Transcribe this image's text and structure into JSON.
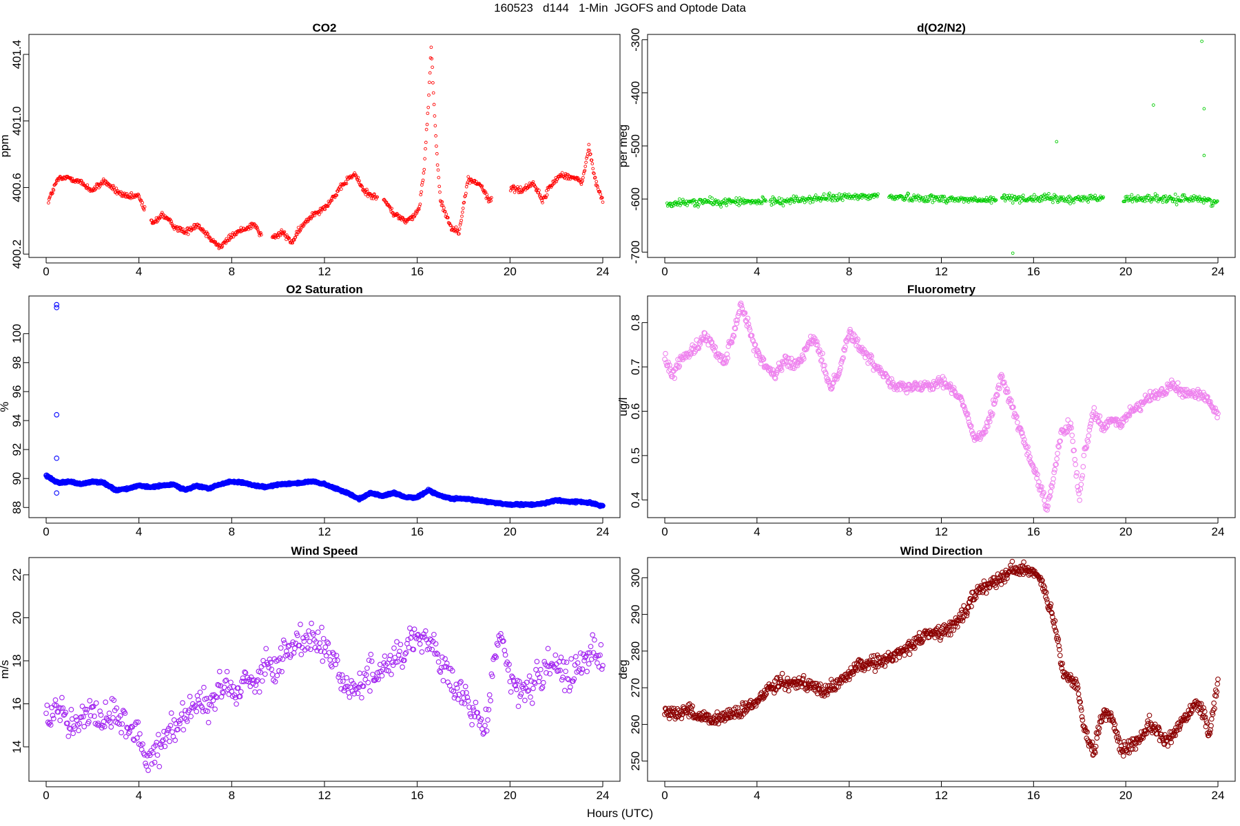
{
  "figure_title": "160523   d144   1-Min  JGOFS and Optode Data",
  "x_caption": "Hours (UTC)",
  "chart_data": [
    {
      "type": "scatter",
      "title": "CO2",
      "ylabel": "ppm",
      "color": "#ff0000",
      "marker_size": "small",
      "xlim": [
        0,
        24
      ],
      "ylim": [
        400.18,
        401.52
      ],
      "xticks": [
        0,
        4,
        8,
        12,
        16,
        20,
        24
      ],
      "yticks": [
        400.2,
        400.6,
        401.0,
        401.4
      ],
      "ytick_labels": [
        "400.2",
        "400.6",
        "401.0",
        "401.4"
      ],
      "series": [
        {
          "name": "CO2",
          "x": [
            0.1,
            0.5,
            1.0,
            1.5,
            2.0,
            2.5,
            3.0,
            3.5,
            4.0,
            4.2,
            4.6,
            5.0,
            5.5,
            6.0,
            6.5,
            7.0,
            7.5,
            8.0,
            8.5,
            9.0,
            9.2,
            9.8,
            10.2,
            10.6,
            11.0,
            11.5,
            12.0,
            12.5,
            13.0,
            13.3,
            13.7,
            14.1,
            14.6,
            15.0,
            15.5,
            15.9,
            16.1,
            16.3,
            16.5,
            16.6,
            16.8,
            17.0,
            17.5,
            17.8,
            18.2,
            18.7,
            19.1,
            20.1,
            20.5,
            21.0,
            21.4,
            21.7,
            22.2,
            22.7,
            23.1,
            23.4,
            23.7,
            24.0
          ],
          "y": [
            400.52,
            400.65,
            400.66,
            400.63,
            400.58,
            400.64,
            400.58,
            400.54,
            400.55,
            400.48,
            400.38,
            400.44,
            400.37,
            400.33,
            400.38,
            400.31,
            400.24,
            400.31,
            400.35,
            400.38,
            400.32,
            400.3,
            400.33,
            400.27,
            400.36,
            400.44,
            400.48,
            400.56,
            400.65,
            400.68,
            400.58,
            400.55,
            400.52,
            400.44,
            400.4,
            400.43,
            400.48,
            400.72,
            401.15,
            401.45,
            400.9,
            400.52,
            400.35,
            400.34,
            400.65,
            400.62,
            400.52,
            400.6,
            400.58,
            400.63,
            400.52,
            400.6,
            400.68,
            400.66,
            400.63,
            400.84,
            400.63,
            400.52
          ]
        }
      ]
    },
    {
      "type": "scatter",
      "title": "d(O2/N2)",
      "ylabel": "per meg",
      "color": "#00cc00",
      "marker_size": "small",
      "xlim": [
        0,
        24
      ],
      "ylim": [
        -710,
        -290
      ],
      "xticks": [
        0,
        4,
        8,
        12,
        16,
        20,
        24
      ],
      "yticks": [
        -700,
        -600,
        -500,
        -400,
        -300
      ],
      "ytick_labels": [
        "-700",
        "-600",
        "-500",
        "-400",
        "-300"
      ],
      "series": [
        {
          "name": "d(O2/N2)",
          "x": [
            0.1,
            0.6,
            1.2,
            1.8,
            2.4,
            3.0,
            3.6,
            4.2,
            4.7,
            5.2,
            5.8,
            6.4,
            7.0,
            7.6,
            8.2,
            8.8,
            9.2,
            9.9,
            10.5,
            11.1,
            11.7,
            12.3,
            12.9,
            13.5,
            14.1,
            14.7,
            15.3,
            15.9,
            16.5,
            17.1,
            17.7,
            18.3,
            18.9,
            20.0,
            20.6,
            21.2,
            21.8,
            22.4,
            23.0,
            23.6,
            24.0
          ],
          "y": [
            -610,
            -608,
            -606,
            -605,
            -607,
            -604,
            -606,
            -605,
            -603,
            -604,
            -601,
            -600,
            -598,
            -597,
            -596,
            -595,
            -594,
            -596,
            -597,
            -598,
            -599,
            -600,
            -601,
            -602,
            -603,
            -598,
            -598,
            -600,
            -598,
            -600,
            -602,
            -597,
            -599,
            -600,
            -599,
            -598,
            -602,
            -600,
            -598,
            -604,
            -605
          ]
        }
      ],
      "outliers": {
        "x": [
          15.1,
          17.0,
          21.2,
          23.3,
          23.4,
          23.4
        ],
        "y": [
          -702,
          -492,
          -423,
          -303,
          -430,
          -518
        ]
      }
    },
    {
      "type": "scatter",
      "title": "O2 Saturation",
      "ylabel": "%",
      "color": "#0000ff",
      "marker_size": "large",
      "xlim": [
        0,
        24
      ],
      "ylim": [
        87.3,
        102.6
      ],
      "xticks": [
        0,
        4,
        8,
        12,
        16,
        20,
        24
      ],
      "yticks": [
        88,
        90,
        92,
        94,
        96,
        98,
        100
      ],
      "ytick_labels": [
        "88",
        "90",
        "92",
        "94",
        "96",
        "98",
        "100"
      ],
      "series": [
        {
          "name": "O2 Saturation",
          "x": [
            0.0,
            0.3,
            0.6,
            1.0,
            1.5,
            2.0,
            2.5,
            3.0,
            3.5,
            4.0,
            4.5,
            5.0,
            5.5,
            6.0,
            6.5,
            7.0,
            7.5,
            8.0,
            8.5,
            9.0,
            9.5,
            10.0,
            11.0,
            11.5,
            12.0,
            12.5,
            13.0,
            13.5,
            14.0,
            14.5,
            15.0,
            15.5,
            16.0,
            16.5,
            17.0,
            17.5,
            18.0,
            18.5,
            19.0,
            19.5,
            20.0,
            20.5,
            21.0,
            21.5,
            22.0,
            22.5,
            23.0,
            23.5,
            24.0
          ],
          "y": [
            90.2,
            89.9,
            89.7,
            89.8,
            89.6,
            89.8,
            89.7,
            89.2,
            89.3,
            89.5,
            89.4,
            89.5,
            89.6,
            89.2,
            89.5,
            89.3,
            89.6,
            89.8,
            89.7,
            89.5,
            89.4,
            89.6,
            89.7,
            89.8,
            89.6,
            89.3,
            89.0,
            88.6,
            89.0,
            88.8,
            89.0,
            88.7,
            88.7,
            89.2,
            88.8,
            88.6,
            88.6,
            88.5,
            88.4,
            88.3,
            88.2,
            88.2,
            88.2,
            88.3,
            88.5,
            88.4,
            88.4,
            88.3,
            88.1
          ]
        }
      ],
      "outliers": {
        "x": [
          0.45,
          0.45,
          0.45,
          0.45,
          0.45
        ],
        "y": [
          102.0,
          101.8,
          94.4,
          91.4,
          89.0
        ]
      }
    },
    {
      "type": "scatter",
      "title": "Fluorometry",
      "ylabel": "ug/l",
      "color": "#ee82ee",
      "marker_size": "large",
      "xlim": [
        0,
        24
      ],
      "ylim": [
        0.36,
        0.86
      ],
      "xticks": [
        0,
        4,
        8,
        12,
        16,
        20,
        24
      ],
      "yticks": [
        0.4,
        0.5,
        0.6,
        0.7,
        0.8
      ],
      "ytick_labels": [
        "0.4",
        "0.5",
        "0.6",
        "0.7",
        "0.8"
      ],
      "series": [
        {
          "name": "Fluorometry",
          "x": [
            0.0,
            0.3,
            0.6,
            1.0,
            1.4,
            1.8,
            2.2,
            2.6,
            3.0,
            3.3,
            3.6,
            4.0,
            4.4,
            4.8,
            5.2,
            5.6,
            6.0,
            6.4,
            6.8,
            7.2,
            7.6,
            8.0,
            8.4,
            8.8,
            9.2,
            9.6,
            10.0,
            10.5,
            11.0,
            11.5,
            12.0,
            12.5,
            13.0,
            13.4,
            13.8,
            14.2,
            14.6,
            15.0,
            15.4,
            15.8,
            16.2,
            16.6,
            16.9,
            17.2,
            17.6,
            18.0,
            18.2,
            18.6,
            19.0,
            19.4,
            19.8,
            20.2,
            20.6,
            21.0,
            21.5,
            22.0,
            22.5,
            23.0,
            23.5,
            24.0
          ],
          "y": [
            0.72,
            0.68,
            0.71,
            0.73,
            0.75,
            0.77,
            0.74,
            0.71,
            0.78,
            0.84,
            0.8,
            0.73,
            0.7,
            0.68,
            0.72,
            0.7,
            0.72,
            0.77,
            0.72,
            0.65,
            0.7,
            0.78,
            0.75,
            0.72,
            0.7,
            0.68,
            0.66,
            0.65,
            0.66,
            0.66,
            0.67,
            0.65,
            0.61,
            0.54,
            0.55,
            0.6,
            0.68,
            0.62,
            0.56,
            0.5,
            0.44,
            0.38,
            0.46,
            0.55,
            0.57,
            0.4,
            0.5,
            0.6,
            0.56,
            0.58,
            0.57,
            0.6,
            0.61,
            0.63,
            0.64,
            0.66,
            0.64,
            0.64,
            0.63,
            0.59
          ]
        }
      ]
    },
    {
      "type": "scatter",
      "title": "Wind Speed",
      "ylabel": "m/s",
      "color": "#a020f0",
      "marker_size": "large",
      "xlim": [
        0,
        24
      ],
      "ylim": [
        12.4,
        22.8
      ],
      "xticks": [
        0,
        4,
        8,
        12,
        16,
        20,
        24
      ],
      "yticks": [
        14,
        16,
        18,
        20,
        22
      ],
      "ytick_labels": [
        "14",
        "16",
        "18",
        "20",
        "22"
      ],
      "series": [
        {
          "name": "Wind Speed",
          "x": [
            0.0,
            0.4,
            0.8,
            1.2,
            1.6,
            2.0,
            2.4,
            2.8,
            3.2,
            3.6,
            4.0,
            4.3,
            4.6,
            5.0,
            5.4,
            5.8,
            6.2,
            6.6,
            7.0,
            7.4,
            7.8,
            8.2,
            8.6,
            9.0,
            9.4,
            9.8,
            10.2,
            10.6,
            11.0,
            11.4,
            11.8,
            12.2,
            12.6,
            13.0,
            13.4,
            13.8,
            14.2,
            14.6,
            15.0,
            15.4,
            15.8,
            16.2,
            16.6,
            17.0,
            17.4,
            17.8,
            18.2,
            18.6,
            19.0,
            19.3,
            19.6,
            20.0,
            20.4,
            20.8,
            21.2,
            21.6,
            22.0,
            22.4,
            22.8,
            23.2,
            23.6,
            24.0
          ],
          "y": [
            15.3,
            16.0,
            15.6,
            15.0,
            15.4,
            15.8,
            15.1,
            15.6,
            15.3,
            14.9,
            14.6,
            13.4,
            13.8,
            14.2,
            14.9,
            15.3,
            15.8,
            16.2,
            15.5,
            16.8,
            17.0,
            16.6,
            17.2,
            17.0,
            17.8,
            17.5,
            18.3,
            18.6,
            19.0,
            19.2,
            18.8,
            18.6,
            17.5,
            16.8,
            16.6,
            17.2,
            17.6,
            17.8,
            18.1,
            18.3,
            19.2,
            19.1,
            18.8,
            18.0,
            17.0,
            16.5,
            16.0,
            15.2,
            15.0,
            18.0,
            19.5,
            17.0,
            16.5,
            16.8,
            17.2,
            17.5,
            17.8,
            17.3,
            17.6,
            18.0,
            18.6,
            17.8
          ]
        }
      ]
    },
    {
      "type": "scatter",
      "title": "Wind Direction",
      "ylabel": "deg",
      "color": "#8b0000",
      "marker_size": "large",
      "xlim": [
        0,
        24
      ],
      "ylim": [
        244.5,
        305.5
      ],
      "xticks": [
        0,
        4,
        8,
        12,
        16,
        20,
        24
      ],
      "yticks": [
        250,
        260,
        270,
        280,
        290,
        300
      ],
      "ytick_labels": [
        "250",
        "260",
        "270",
        "280",
        "290",
        "300"
      ],
      "series": [
        {
          "name": "Wind Direction",
          "x": [
            0.0,
            0.5,
            1.0,
            1.5,
            2.0,
            2.5,
            3.0,
            3.5,
            4.0,
            4.5,
            5.0,
            5.5,
            6.0,
            6.5,
            7.0,
            7.5,
            8.0,
            8.5,
            9.0,
            9.5,
            10.0,
            10.5,
            11.0,
            11.5,
            12.0,
            12.5,
            13.0,
            13.5,
            14.0,
            14.5,
            15.0,
            15.5,
            16.0,
            16.3,
            16.6,
            16.9,
            17.1,
            17.3,
            17.6,
            17.9,
            18.2,
            18.6,
            19.0,
            19.4,
            19.8,
            20.2,
            20.6,
            21.0,
            21.4,
            21.8,
            22.2,
            22.6,
            23.0,
            23.3,
            23.6,
            24.0
          ],
          "y": [
            264,
            263,
            264,
            262,
            261,
            262,
            263,
            264,
            266,
            270,
            272,
            271,
            272,
            270,
            269,
            271,
            274,
            276,
            277,
            277,
            279,
            281,
            283,
            285,
            285,
            287,
            290,
            296,
            298,
            300,
            302,
            302,
            302,
            300,
            294,
            287,
            281,
            273,
            272,
            271,
            258,
            252,
            263,
            262,
            253,
            254,
            256,
            260,
            258,
            255,
            259,
            262,
            266,
            264,
            257,
            271
          ]
        }
      ]
    }
  ]
}
